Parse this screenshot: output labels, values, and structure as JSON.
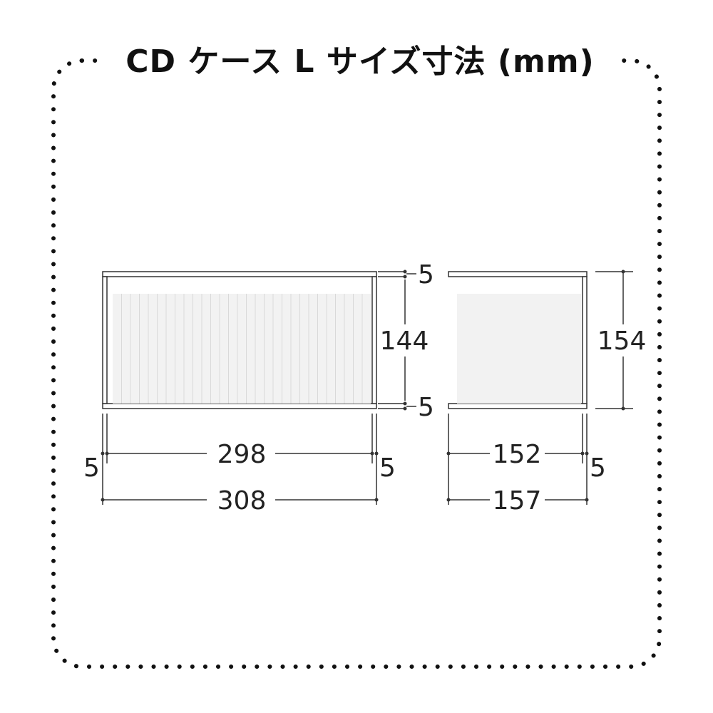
{
  "title": "CD ケース L サイズ寸法 (mm)",
  "colors": {
    "line": "#333333",
    "panel": "#f2f2f2",
    "slat": "#d9d9d9",
    "text": "#222222"
  },
  "front_view": {
    "top_thickness": "5",
    "inner_height": "144",
    "bottom_thickness": "5",
    "left_thickness": "5",
    "inner_width": "298",
    "right_thickness": "5",
    "total_width": "308"
  },
  "side_view": {
    "total_height": "154",
    "inner_depth": "152",
    "back_thickness": "5",
    "total_depth": "157"
  }
}
